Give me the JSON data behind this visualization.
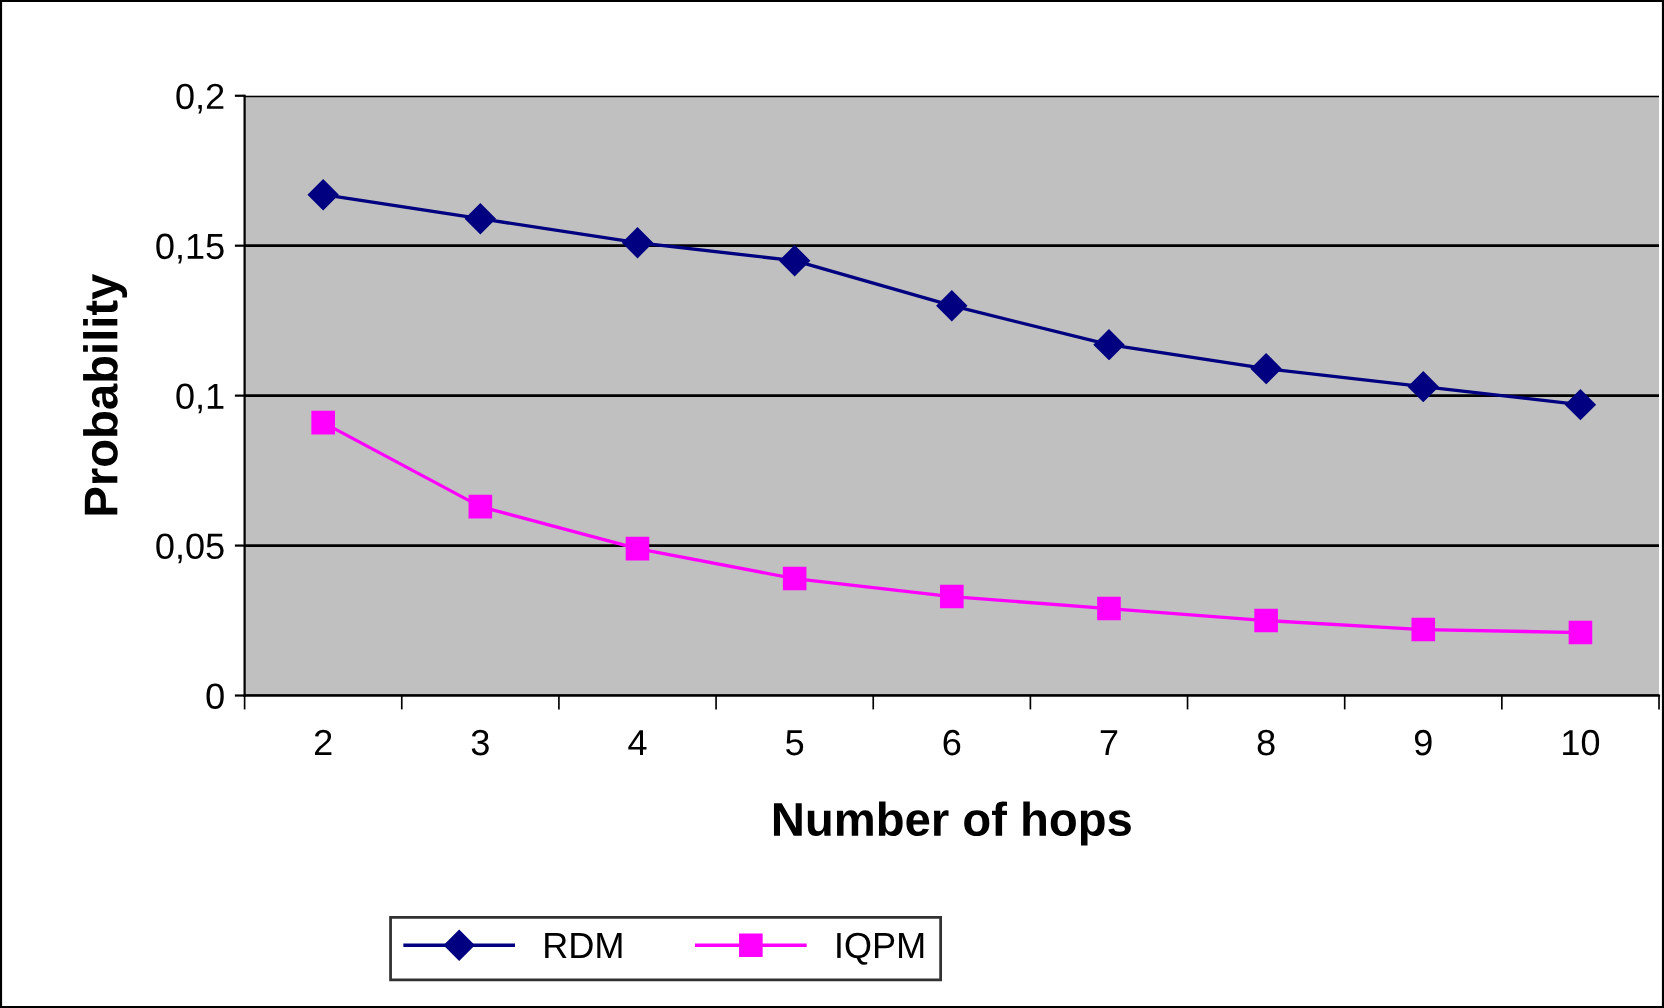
{
  "chart_data": {
    "type": "line",
    "xlabel": "Number of hops",
    "ylabel": "Probability",
    "categories": [
      "2",
      "3",
      "4",
      "5",
      "6",
      "7",
      "8",
      "9",
      "10"
    ],
    "series": [
      {
        "name": "RDM",
        "color": "#000080",
        "marker": "diamond",
        "values": [
          0.167,
          0.159,
          0.151,
          0.145,
          0.13,
          0.117,
          0.109,
          0.103,
          0.097
        ]
      },
      {
        "name": "IQPM",
        "color": "#ff00ff",
        "marker": "square",
        "values": [
          0.091,
          0.063,
          0.049,
          0.039,
          0.033,
          0.029,
          0.025,
          0.022,
          0.021
        ]
      }
    ],
    "ylim": [
      0,
      0.2
    ],
    "yticks": [
      {
        "value": 0,
        "label": "0"
      },
      {
        "value": 0.05,
        "label": "0,05"
      },
      {
        "value": 0.1,
        "label": "0,1"
      },
      {
        "value": 0.15,
        "label": "0,15"
      },
      {
        "value": 0.2,
        "label": "0,2"
      }
    ],
    "grid": "y",
    "legend": "bottom"
  }
}
